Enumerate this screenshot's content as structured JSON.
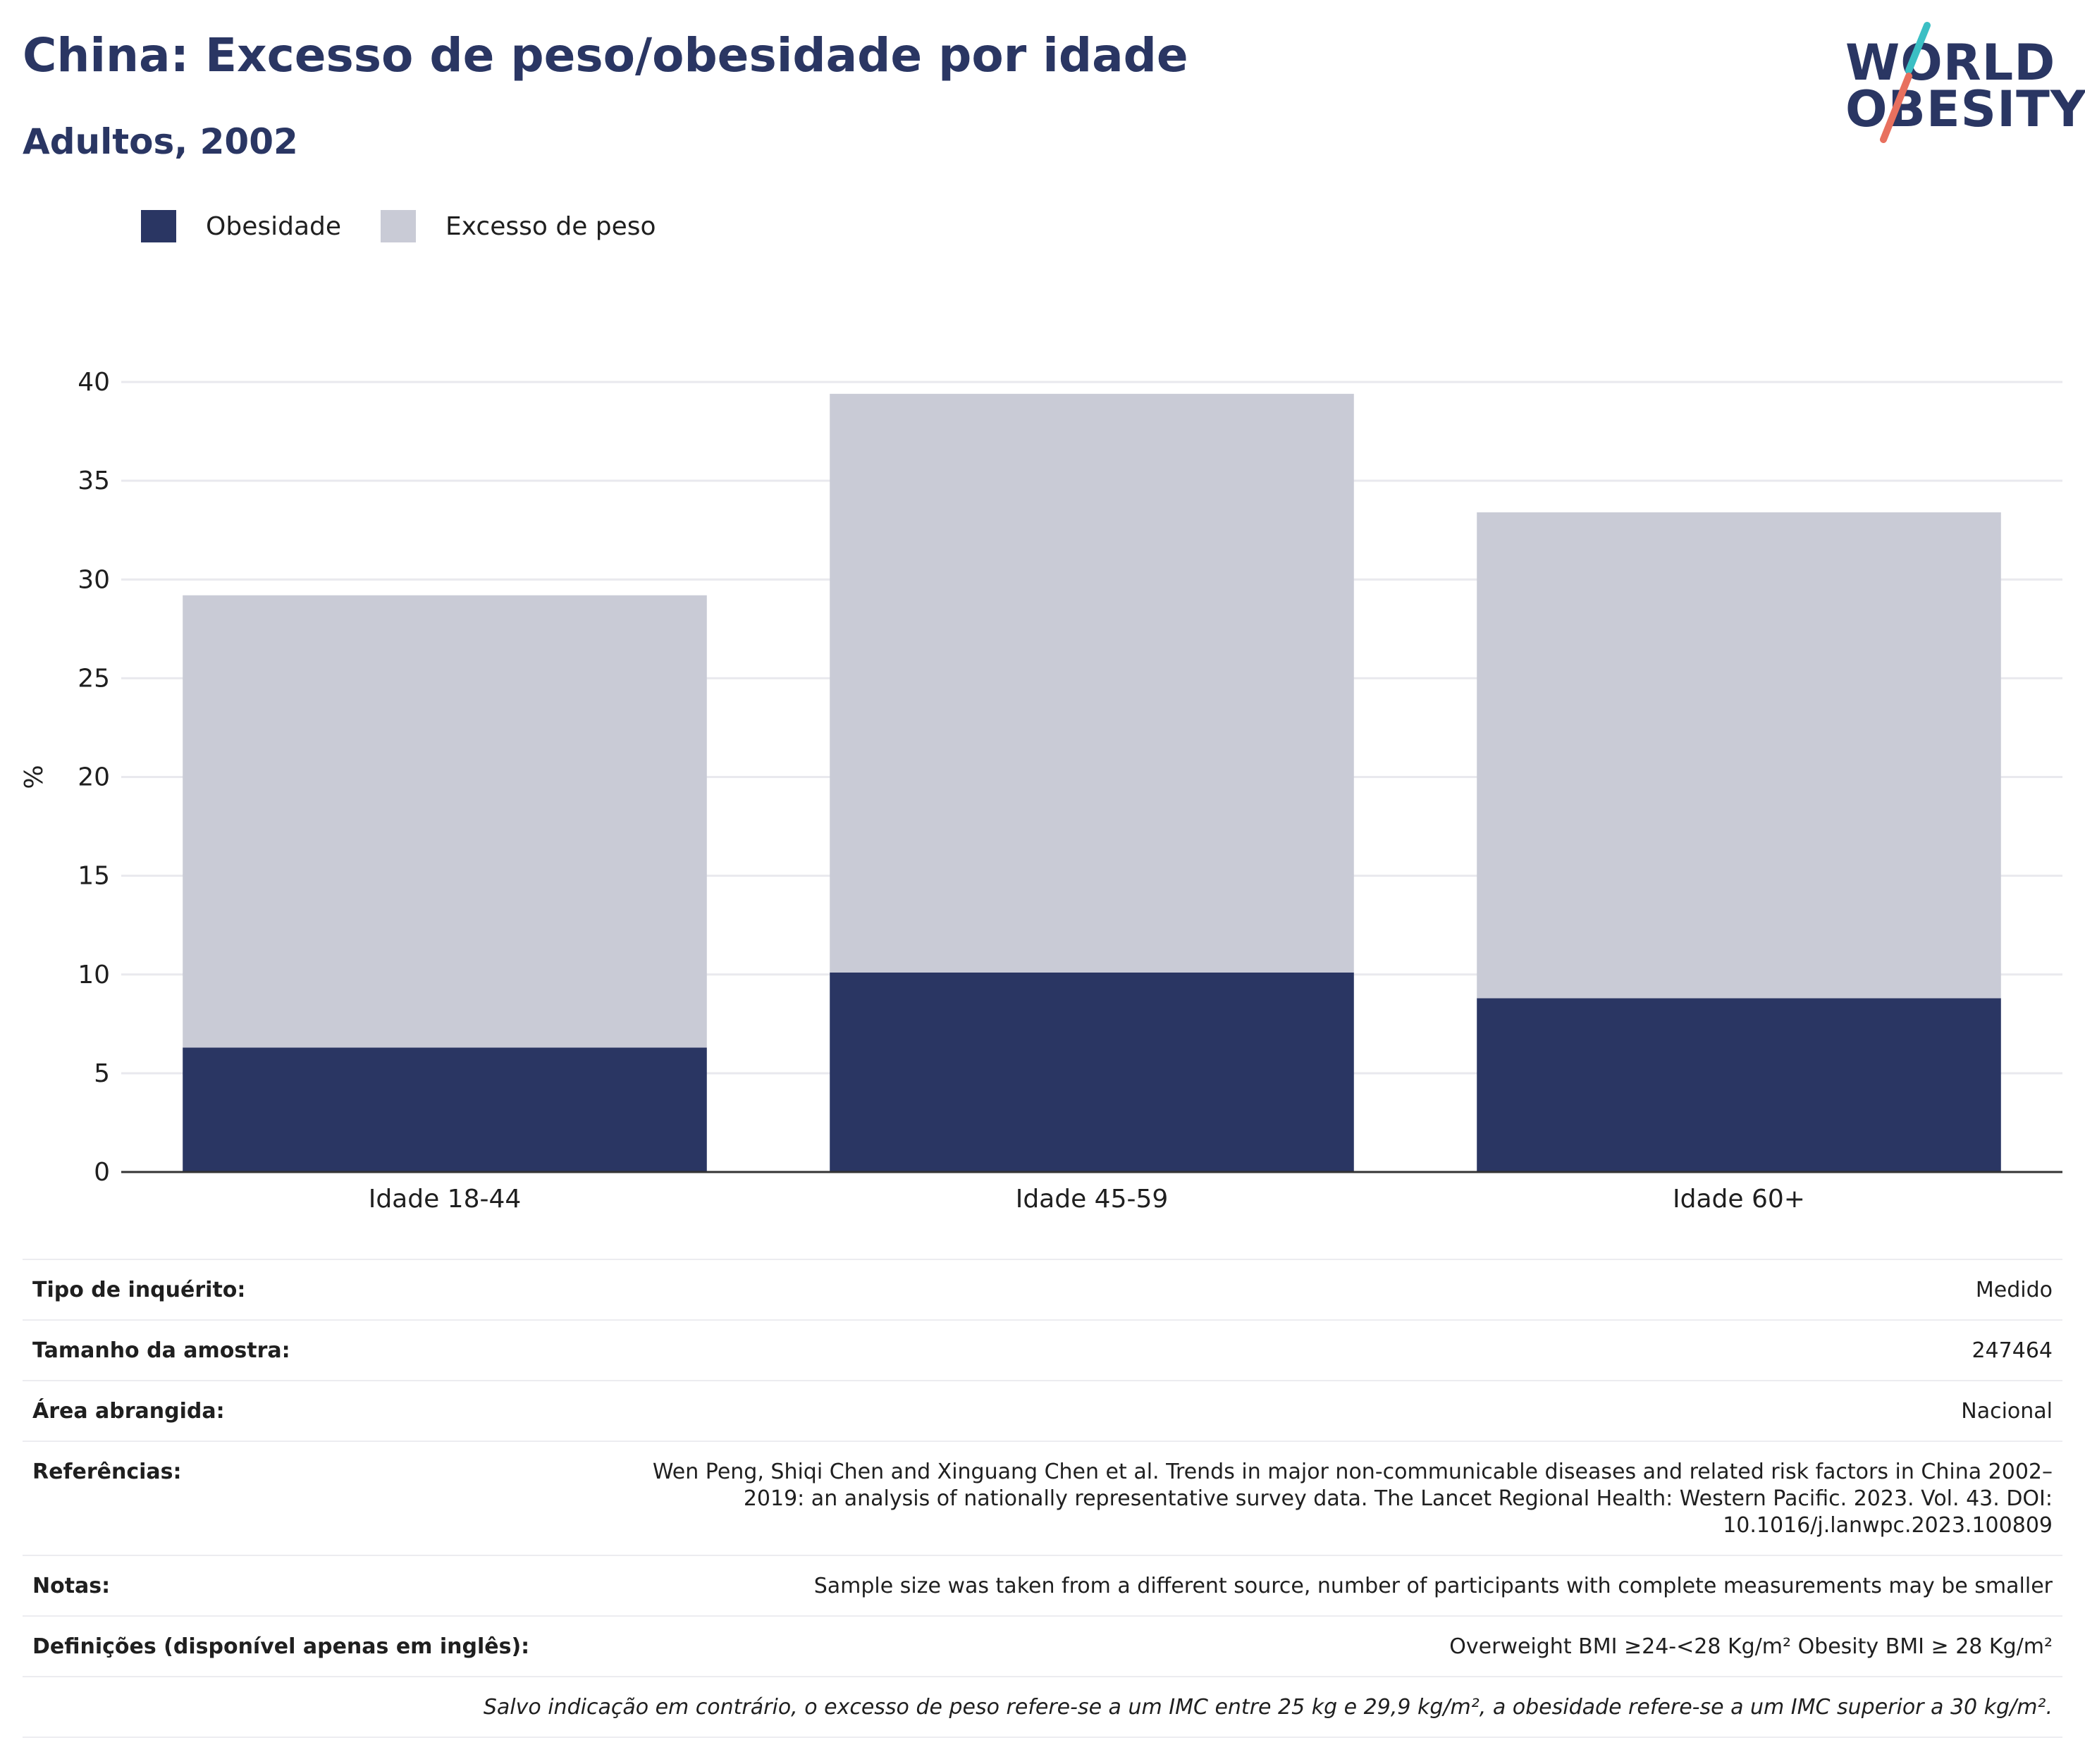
{
  "header": {
    "title": "China: Excesso de peso/obesidade por idade",
    "subtitle": "Adultos, 2002"
  },
  "logo": {
    "line1": "WORLD",
    "line2": "OBESITY",
    "accent_teal": "#3bbfc4",
    "accent_coral": "#e8705e"
  },
  "colors": {
    "obesity": "#2a3663",
    "overweight": "#c9cbd6",
    "grid": "#e9e9ee",
    "axis": "#333333"
  },
  "chart_data": {
    "type": "bar",
    "stacked": true,
    "categories": [
      "Idade 18-44",
      "Idade 45-59",
      "Idade 60+"
    ],
    "series": [
      {
        "name": "Obesidade",
        "values": [
          6.3,
          10.1,
          8.8
        ]
      },
      {
        "name": "Excesso de peso",
        "values": [
          22.9,
          29.3,
          24.6
        ]
      }
    ],
    "ylabel": "%",
    "ylim": [
      0,
      40
    ],
    "yticks": [
      "0",
      "5",
      "10",
      "15",
      "20",
      "25",
      "30",
      "35",
      "40"
    ],
    "grid": true,
    "legend": "top-left"
  },
  "info": {
    "rows": [
      {
        "key": "Tipo de inquérito:",
        "value": "Medido"
      },
      {
        "key": "Tamanho da amostra:",
        "value": "247464"
      },
      {
        "key": "Área abrangida:",
        "value": "Nacional"
      },
      {
        "key": "Referências:",
        "value": "Wen Peng, Shiqi Chen and Xinguang Chen et al. Trends in major non-communicable diseases and related risk factors in China 2002–2019: an analysis of nationally representative survey data. The Lancet Regional Health: Western Pacific. 2023. Vol. 43. DOI: 10.1016/j.lanwpc.2023.100809"
      },
      {
        "key": "Notas:",
        "value": "Sample size was taken from a different source, number of participants with complete measurements may be smaller"
      },
      {
        "key": "Definições (disponível apenas em inglês):",
        "value": "Overweight BMI ≥24-<28 Kg/m² Obesity BMI ≥ 28 Kg/m²"
      }
    ],
    "footnote": "Salvo indicação em contrário, o excesso de peso refere-se a um IMC entre 25 kg e 29,9 kg/m², a obesidade refere-se a um IMC superior a 30 kg/m²."
  }
}
